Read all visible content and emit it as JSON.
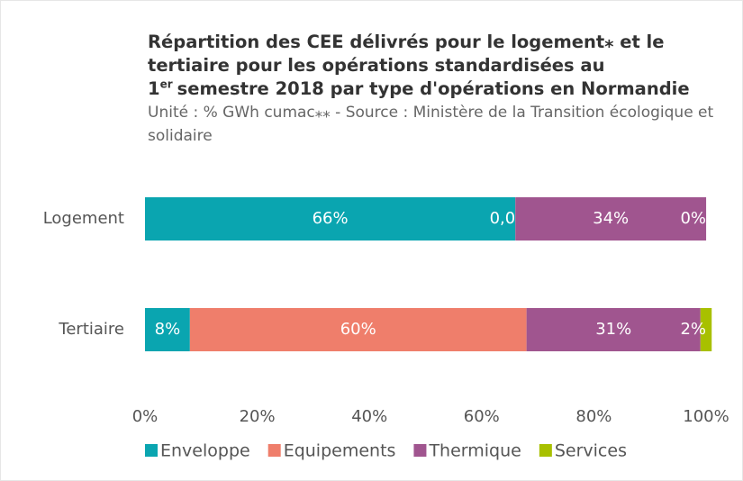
{
  "chart_data": {
    "type": "stacked_barh",
    "title": [
      "Répartition des CEE délivrés pour le logement⁎ et le tertiaire pour les opérations standardisées au 1",
      "er",
      "semestre 2018 par type d'opérations en Normandie"
    ],
    "subtitle": "Unité : % GWh cumac⁎⁎ - Source : Ministère de la Transition écologique et solidaire",
    "categories": [
      "Logement",
      "Tertiaire"
    ],
    "series": [
      {
        "name": "Enveloppe",
        "color": "#0aa5b0",
        "values": [
          66,
          8
        ],
        "value_labels": [
          "66%",
          "8%"
        ]
      },
      {
        "name": "Equipements",
        "color": "#ef7e6b",
        "values": [
          0.01,
          60
        ],
        "value_labels": [
          "0,01%",
          "60%"
        ]
      },
      {
        "name": "Thermique",
        "color": "#a0558f",
        "values": [
          34,
          31
        ],
        "value_labels": [
          "34%",
          "31%"
        ]
      },
      {
        "name": "Services",
        "color": "#a8c000",
        "values": [
          0,
          2
        ],
        "value_labels": [
          "0%",
          "2%"
        ]
      }
    ],
    "xlim": [
      0,
      100
    ],
    "xticks": [
      {
        "value": 0,
        "label": "0%"
      },
      {
        "value": 20,
        "label": "20%"
      },
      {
        "value": 40,
        "label": "40%"
      },
      {
        "value": 60,
        "label": "60%"
      },
      {
        "value": 80,
        "label": "80%"
      },
      {
        "value": 100,
        "label": "100%"
      }
    ],
    "grid": false,
    "legend": "bottom"
  }
}
